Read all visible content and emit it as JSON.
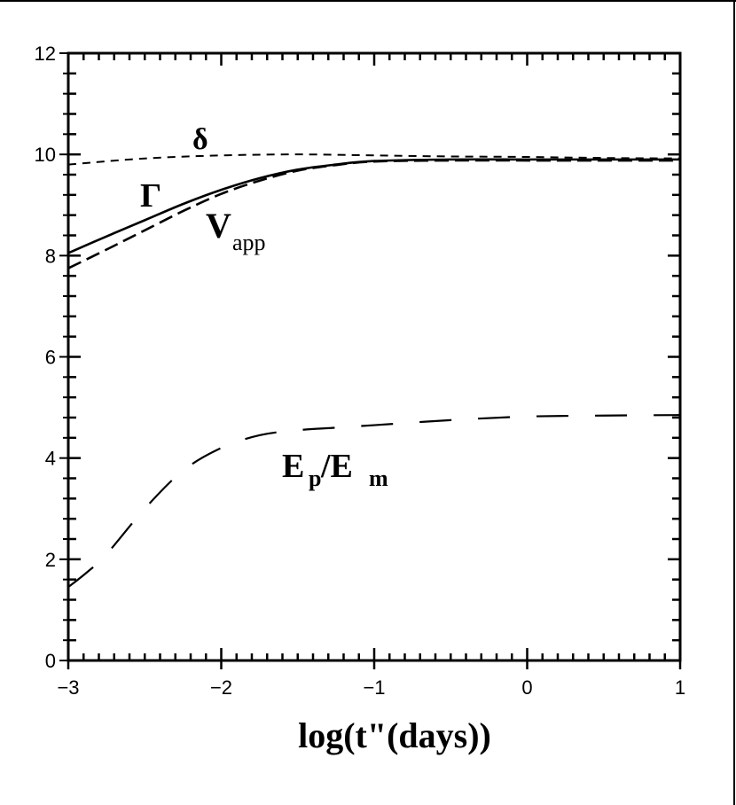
{
  "chart_data": {
    "type": "line",
    "title": "",
    "xlabel": "log(t\"(days))",
    "ylabel": "",
    "xlim": [
      -3,
      1
    ],
    "ylim": [
      0,
      12
    ],
    "grid": false,
    "legend_position": "inline labels",
    "x_ticks": [
      "-3",
      "-2",
      "-1",
      "0",
      "1"
    ],
    "x_tick_values": [
      -3,
      -2,
      -1,
      0,
      1
    ],
    "y_ticks": [
      "0",
      "2",
      "4",
      "6",
      "8",
      "10",
      "12"
    ],
    "y_tick_values": [
      0,
      2,
      4,
      6,
      8,
      10,
      12
    ],
    "series": [
      {
        "name": "δ",
        "label_main": "δ",
        "label_sub": "",
        "style": "short-dash",
        "x": [
          -3,
          -2.5,
          -2,
          -1.5,
          -1,
          -0.5,
          0,
          0.5,
          1
        ],
        "values": [
          9.8,
          9.92,
          9.98,
          10.0,
          9.98,
          9.96,
          9.95,
          9.93,
          9.92
        ]
      },
      {
        "name": "Γ",
        "label_main": "Γ",
        "label_sub": "",
        "style": "solid",
        "x": [
          -3,
          -2.75,
          -2.5,
          -2.25,
          -2,
          -1.75,
          -1.5,
          -1.25,
          -1,
          -0.5,
          0,
          0.5,
          1
        ],
        "values": [
          8.05,
          8.38,
          8.7,
          9.02,
          9.3,
          9.53,
          9.7,
          9.8,
          9.87,
          9.9,
          9.9,
          9.9,
          9.9
        ]
      },
      {
        "name": "V_app",
        "label_main": "V",
        "label_sub": "app",
        "style": "medium-dash",
        "x": [
          -3,
          -2.75,
          -2.5,
          -2.25,
          -2,
          -1.75,
          -1.5,
          -1.25,
          -1,
          -0.5,
          0,
          0.5,
          1
        ],
        "values": [
          7.75,
          8.12,
          8.5,
          8.88,
          9.22,
          9.48,
          9.68,
          9.79,
          9.86,
          9.88,
          9.88,
          9.88,
          9.88
        ]
      },
      {
        "name": "E_p/E_m",
        "label_main": "E",
        "label_sub": "p",
        "label_main2": "/E",
        "label_sub2": "m",
        "style": "long-dash",
        "x": [
          -3,
          -2.875,
          -2.75,
          -2.5,
          -2.25,
          -2,
          -1.75,
          -1.5,
          -1.25,
          -1,
          -0.5,
          0,
          0.5,
          1
        ],
        "values": [
          1.45,
          1.75,
          2.1,
          3.0,
          3.75,
          4.2,
          4.45,
          4.55,
          4.6,
          4.65,
          4.75,
          4.82,
          4.84,
          4.85
        ]
      }
    ]
  }
}
